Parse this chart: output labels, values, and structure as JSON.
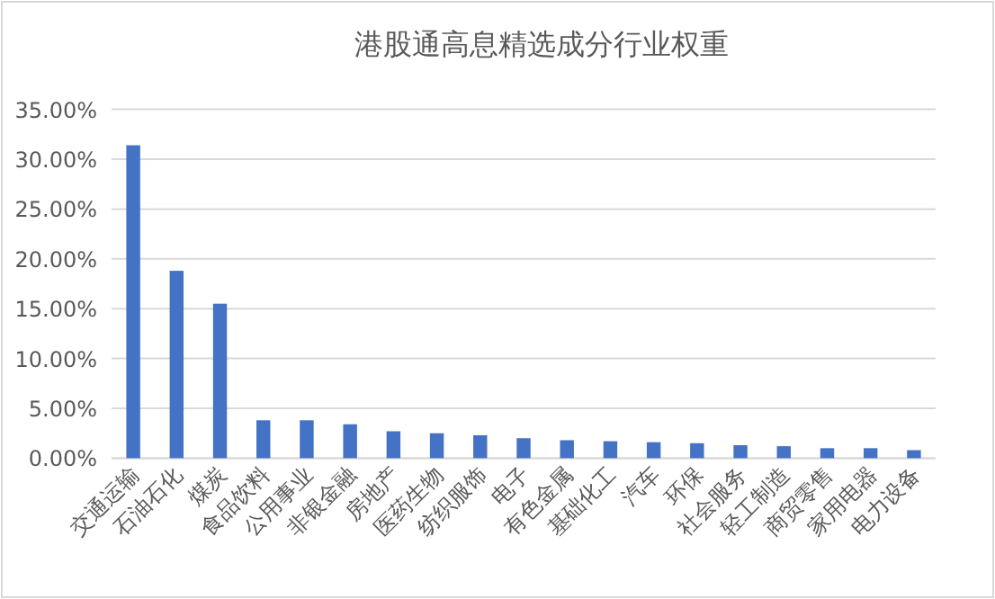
{
  "chart_data": {
    "type": "bar",
    "title": "港股通高息精选成分行业权重",
    "categories": [
      "交通运输",
      "石油石化",
      "煤炭",
      "食品饮料",
      "公用事业",
      "非银金融",
      "房地产",
      "医药生物",
      "纺织服饰",
      "电子",
      "有色金属",
      "基础化工",
      "汽车",
      "环保",
      "社会服务",
      "轻工制造",
      "商贸零售",
      "家用电器",
      "电力设备"
    ],
    "values": [
      31.4,
      18.8,
      15.5,
      3.8,
      3.8,
      3.4,
      2.7,
      2.5,
      2.3,
      2.0,
      1.8,
      1.7,
      1.6,
      1.5,
      1.3,
      1.2,
      1.0,
      1.0,
      0.8
    ],
    "color": "#4472c4",
    "ylim": [
      0,
      35
    ],
    "yticks": [
      {
        "value": 0,
        "label": "0.00%"
      },
      {
        "value": 5,
        "label": "5.00%"
      },
      {
        "value": 10,
        "label": "10.00%"
      },
      {
        "value": 15,
        "label": "15.00%"
      },
      {
        "value": 20,
        "label": "20.00%"
      },
      {
        "value": 25,
        "label": "25.00%"
      },
      {
        "value": 30,
        "label": "30.00%"
      },
      {
        "value": 35,
        "label": "35.00%"
      }
    ],
    "grid": "y"
  }
}
